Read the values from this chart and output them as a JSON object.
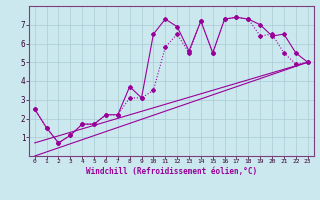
{
  "xlabel": "Windchill (Refroidissement éolien,°C)",
  "bg_color": "#cce8ef",
  "line_color": "#990099",
  "spine_color": "#7b3f7b",
  "xlim": [
    -0.5,
    23.5
  ],
  "ylim": [
    0,
    8
  ],
  "xticks": [
    0,
    1,
    2,
    3,
    4,
    5,
    6,
    7,
    8,
    9,
    10,
    11,
    12,
    13,
    14,
    15,
    16,
    17,
    18,
    19,
    20,
    21,
    22,
    23
  ],
  "yticks": [
    1,
    2,
    3,
    4,
    5,
    6,
    7
  ],
  "grid_color": "#aaccd4",
  "curve1_x": [
    0,
    1,
    2,
    3,
    4,
    5,
    6,
    7,
    8,
    9,
    10,
    11,
    12,
    13,
    14,
    15,
    16,
    17,
    18,
    19,
    20,
    21,
    22,
    23
  ],
  "curve1_y": [
    2.5,
    1.5,
    0.7,
    1.1,
    1.7,
    1.7,
    2.2,
    2.2,
    3.7,
    3.1,
    6.5,
    7.3,
    6.9,
    5.6,
    7.2,
    5.5,
    7.3,
    7.4,
    7.3,
    7.0,
    6.4,
    6.5,
    5.5,
    5.0
  ],
  "curve2_x": [
    0,
    1,
    2,
    3,
    4,
    5,
    6,
    7,
    8,
    9,
    10,
    11,
    12,
    13,
    14,
    15,
    16,
    17,
    18,
    19,
    20,
    21,
    22,
    23
  ],
  "curve2_y": [
    2.5,
    1.5,
    0.7,
    1.1,
    1.7,
    1.7,
    2.2,
    2.2,
    3.1,
    3.1,
    3.5,
    5.8,
    6.5,
    5.5,
    7.2,
    5.5,
    7.3,
    7.4,
    7.3,
    6.4,
    6.5,
    5.5,
    4.9,
    5.0
  ],
  "line1_x": [
    0,
    23
  ],
  "line1_y": [
    0.0,
    5.0
  ],
  "line2_x": [
    0,
    23
  ],
  "line2_y": [
    0.7,
    5.0
  ]
}
